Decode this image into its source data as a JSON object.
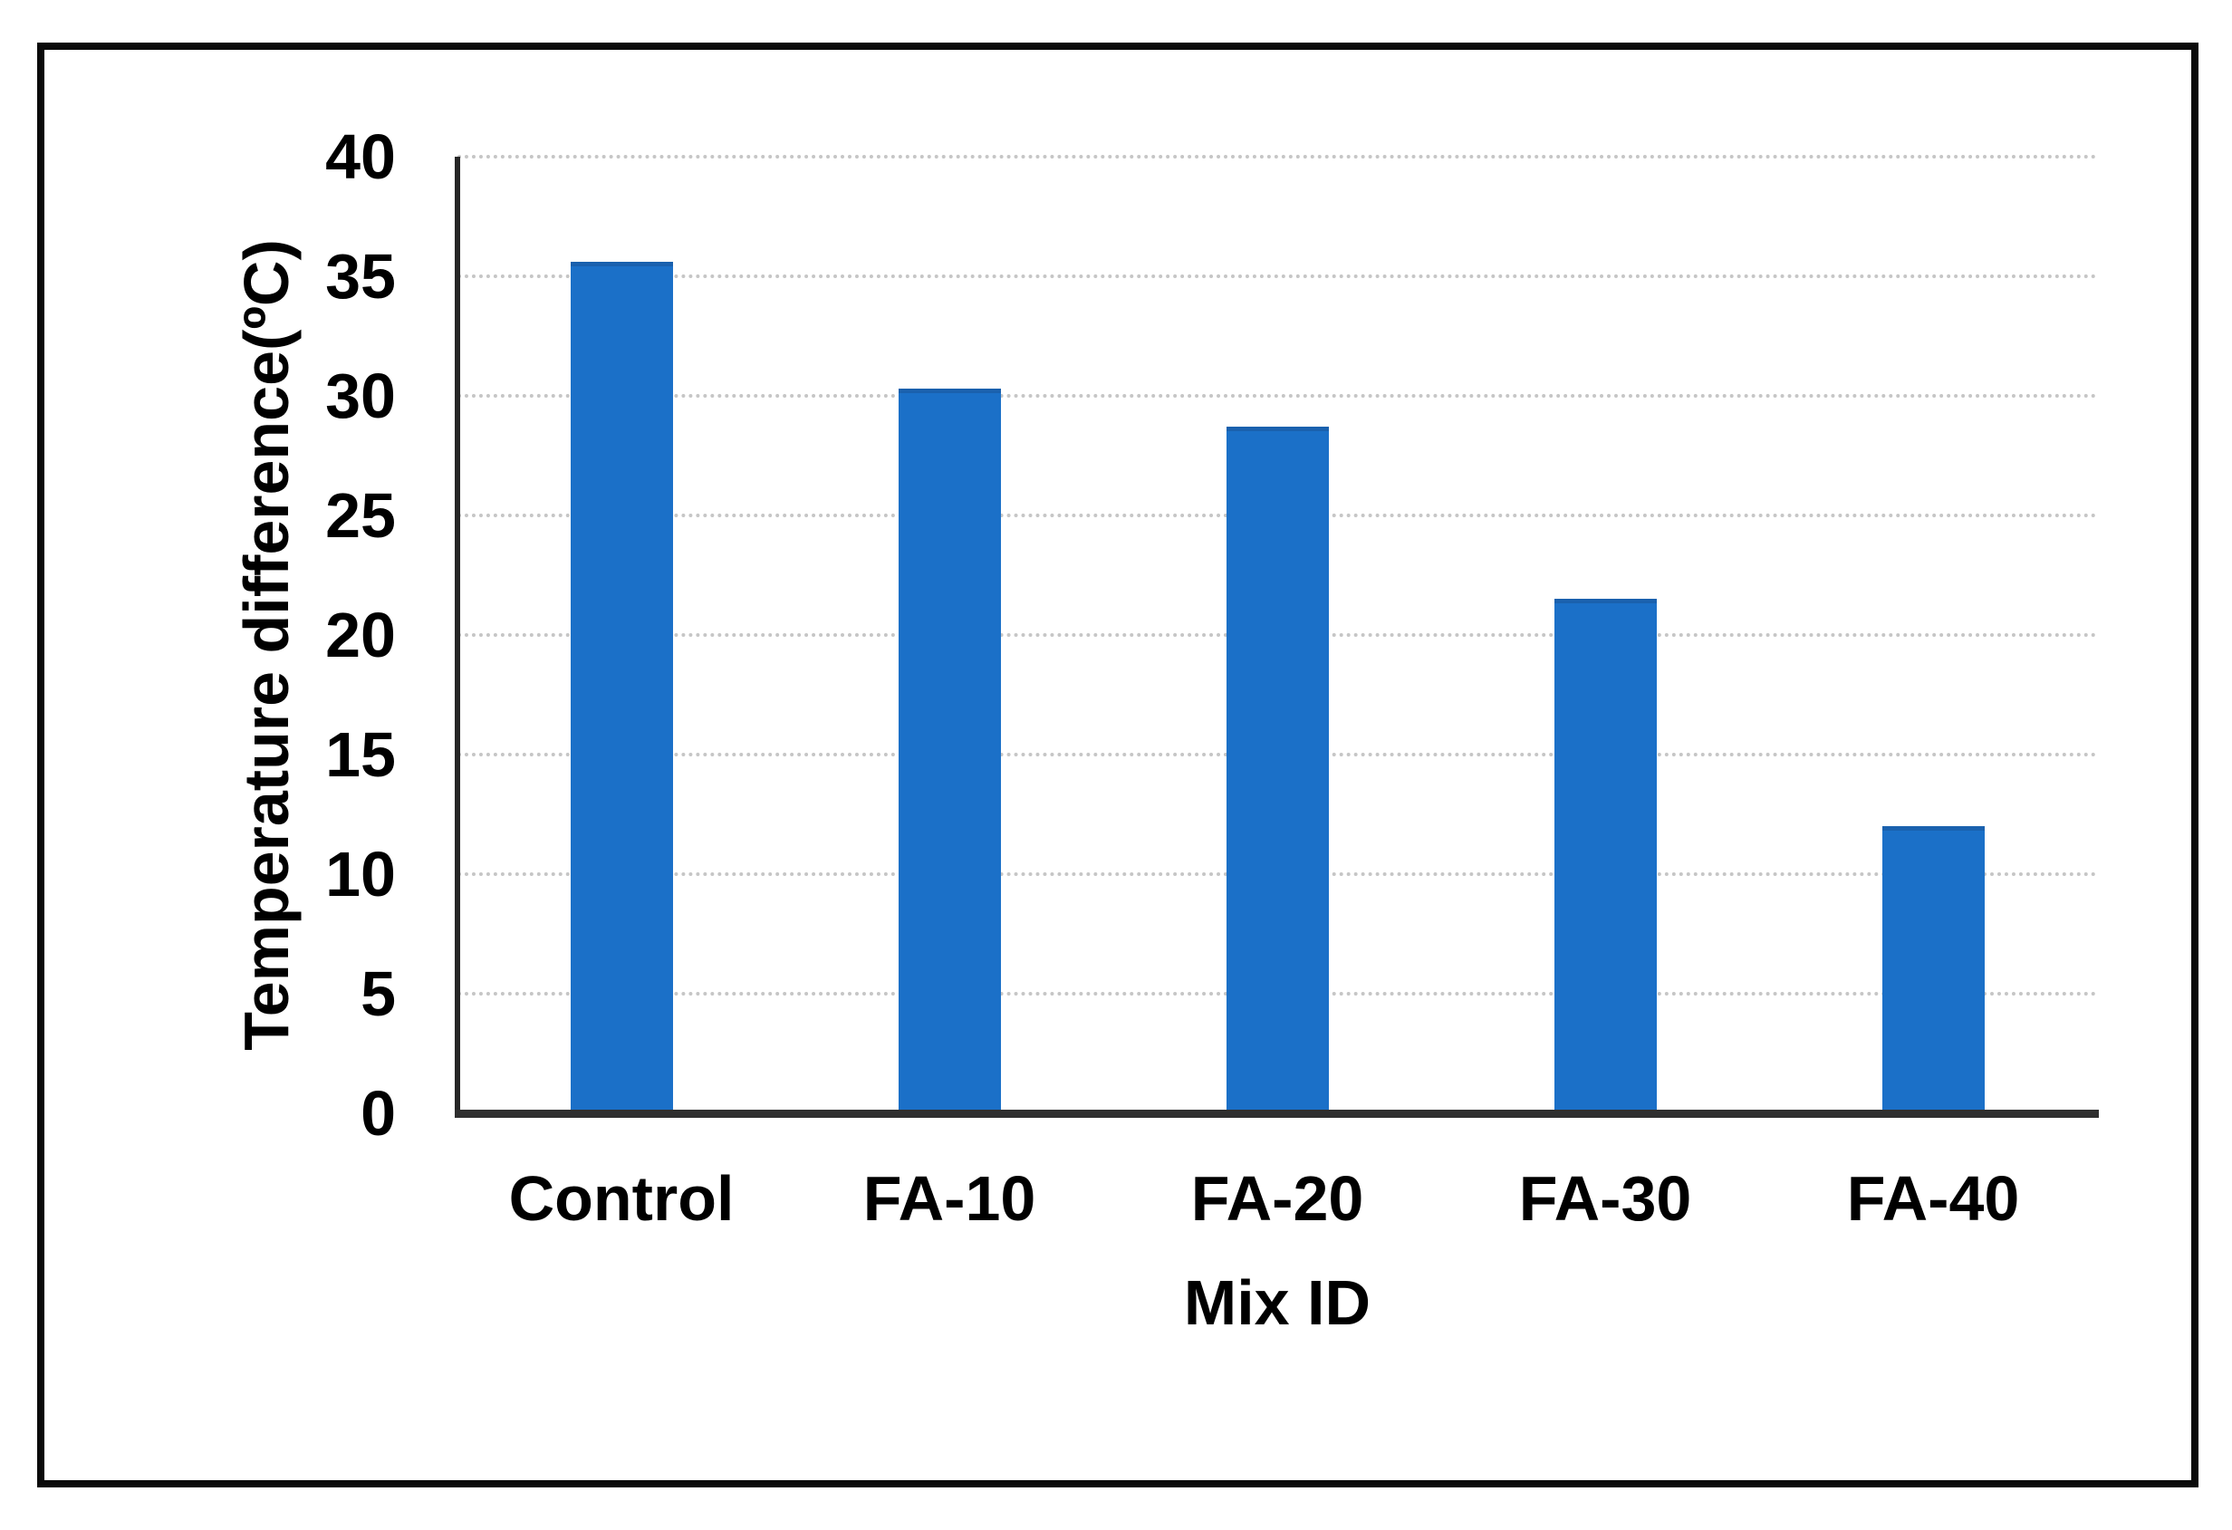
{
  "chart_data": {
    "type": "bar",
    "title": "",
    "xlabel": "Mix ID",
    "ylabel": "Temperature difference(ºC)",
    "categories": [
      "Control",
      "FA-10",
      "FA-20",
      "FA-30",
      "FA-40"
    ],
    "values": [
      35.6,
      30.3,
      28.7,
      21.5,
      12
    ],
    "ylim": [
      0,
      40
    ],
    "ytick_step": 5,
    "yticks": [
      "0",
      "5",
      "10",
      "15",
      "20",
      "25",
      "30",
      "35",
      "40"
    ],
    "grid": "horizontal-dotted-gray",
    "legend": "none",
    "colors": {
      "bar_fill": "#1b70c8",
      "bar_edge": "#1a61ae",
      "axis_line": "#262626",
      "gridline": "#c6c6c6",
      "text": "#000000",
      "figure_border": "#0a0a0a",
      "background": "#ffffff"
    }
  }
}
